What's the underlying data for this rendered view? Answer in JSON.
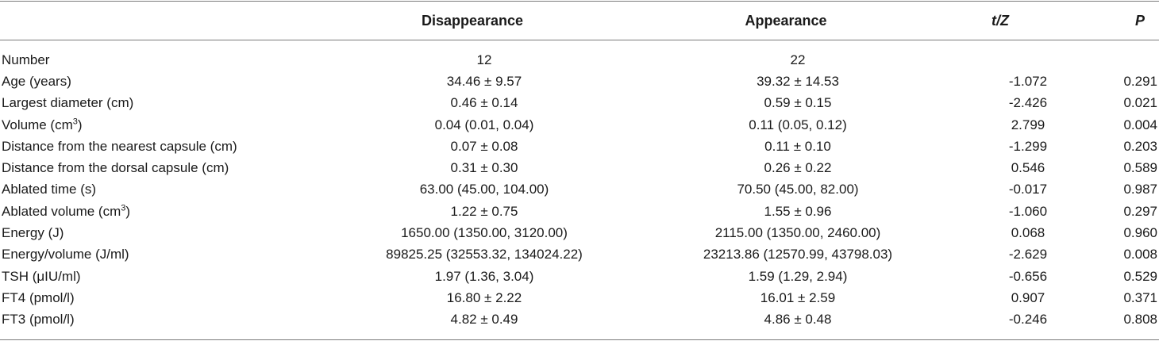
{
  "header": {
    "col0": "",
    "col1": "Disappearance",
    "col2": "Appearance",
    "col3": "t/Z",
    "col4": "P"
  },
  "rows": [
    {
      "label": "Number",
      "sup": "",
      "label_after": "",
      "v1": "12",
      "v2": "22",
      "v3": "",
      "v4": ""
    },
    {
      "label": "Age (years)",
      "sup": "",
      "label_after": "",
      "v1": "34.46 ± 9.57",
      "v2": "39.32 ± 14.53",
      "v3": "-1.072",
      "v4": "0.291"
    },
    {
      "label": "Largest diameter (cm)",
      "sup": "",
      "label_after": "",
      "v1": "0.46 ± 0.14",
      "v2": "0.59 ± 0.15",
      "v3": "-2.426",
      "v4": "0.021"
    },
    {
      "label": "Volume (cm",
      "sup": "3",
      "label_after": ")",
      "v1": "0.04 (0.01, 0.04)",
      "v2": "0.11 (0.05, 0.12)",
      "v3": "2.799",
      "v4": "0.004"
    },
    {
      "label": "Distance from the nearest capsule (cm)",
      "sup": "",
      "label_after": "",
      "v1": "0.07 ± 0.08",
      "v2": "0.11 ± 0.10",
      "v3": "-1.299",
      "v4": "0.203"
    },
    {
      "label": "Distance from the dorsal capsule (cm)",
      "sup": "",
      "label_after": "",
      "v1": "0.31 ± 0.30",
      "v2": "0.26 ± 0.22",
      "v3": "0.546",
      "v4": "0.589"
    },
    {
      "label": "Ablated time (s)",
      "sup": "",
      "label_after": "",
      "v1": "63.00 (45.00, 104.00)",
      "v2": "70.50 (45.00, 82.00)",
      "v3": "-0.017",
      "v4": "0.987"
    },
    {
      "label": "Ablated volume (cm",
      "sup": "3",
      "label_after": ")",
      "v1": "1.22 ± 0.75",
      "v2": "1.55 ± 0.96",
      "v3": "-1.060",
      "v4": "0.297"
    },
    {
      "label": "Energy (J)",
      "sup": "",
      "label_after": "",
      "v1": "1650.00 (1350.00, 3120.00)",
      "v2": "2115.00 (1350.00, 2460.00)",
      "v3": "0.068",
      "v4": "0.960"
    },
    {
      "label": "Energy/volume (J/ml)",
      "sup": "",
      "label_after": "",
      "v1": "89825.25 (32553.32, 134024.22)",
      "v2": "23213.86 (12570.99, 43798.03)",
      "v3": "-2.629",
      "v4": "0.008"
    },
    {
      "label": "TSH (μIU/ml)",
      "sup": "",
      "label_after": "",
      "v1": "1.97 (1.36, 3.04)",
      "v2": "1.59 (1.29, 2.94)",
      "v3": "-0.656",
      "v4": "0.529"
    },
    {
      "label": "FT4 (pmol/l)",
      "sup": "",
      "label_after": "",
      "v1": "16.80 ± 2.22",
      "v2": "16.01 ± 2.59",
      "v3": "0.907",
      "v4": "0.371"
    },
    {
      "label": "FT3 (pmol/l)",
      "sup": "",
      "label_after": "",
      "v1": "4.82 ± 0.49",
      "v2": "4.86 ± 0.48",
      "v3": "-0.246",
      "v4": "0.808"
    }
  ]
}
